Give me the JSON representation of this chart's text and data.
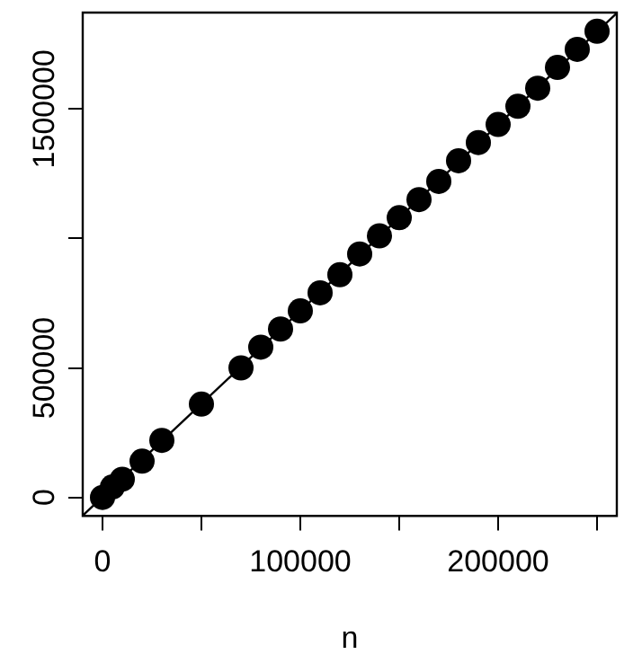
{
  "chart_data": {
    "type": "scatter",
    "xlabel": "n",
    "x": [
      0,
      5000,
      10000,
      20000,
      30000,
      50000,
      70000,
      80000,
      90000,
      100000,
      110000,
      120000,
      130000,
      140000,
      150000,
      160000,
      170000,
      180000,
      190000,
      200000,
      210000,
      220000,
      230000,
      240000,
      250000
    ],
    "series": [
      {
        "color": "#000000",
        "values": [
          0,
          40000,
          70000,
          140000,
          220000,
          360000,
          500000,
          580000,
          650000,
          720000,
          790000,
          860000,
          940000,
          1010000,
          1080000,
          1150000,
          1220000,
          1300000,
          1370000,
          1440000,
          1510000,
          1580000,
          1660000,
          1730000,
          1800000
        ]
      },
      {
        "type": "line",
        "marker": "none",
        "color": "#000000",
        "x": [
          -10000,
          260000
        ],
        "values": [
          -70000,
          1870000
        ]
      }
    ],
    "marker": "circle",
    "xlim": [
      -10000,
      260000
    ],
    "ylim": [
      -72000,
      1872000
    ],
    "xticks": [
      0,
      {
        "value": 50000,
        "label": null
      },
      100000,
      {
        "value": 150000,
        "label": null
      },
      200000,
      {
        "value": 250000,
        "label": null
      }
    ],
    "yticks": [
      0,
      500000,
      {
        "value": 1000000,
        "label": null
      },
      1500000
    ],
    "grid": false,
    "legend": false
  }
}
